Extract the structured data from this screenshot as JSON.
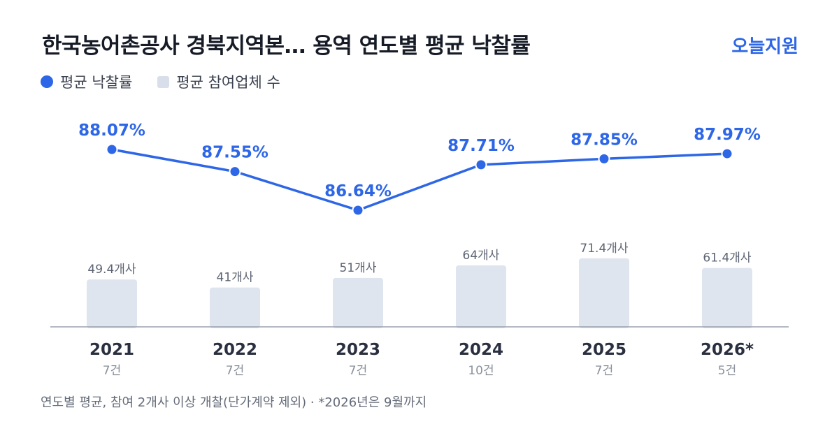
{
  "title": "한국농어촌공사 경북지역본… 용역 연도별 평균 낙찰률",
  "brand": "오늘지원",
  "legend": {
    "rate_label": "평균 낙찰률",
    "count_label": "평균 참여업체 수"
  },
  "footnote": "연도별 평균, 참여 2개사 이상 개찰(단가계약 제외) · *2026년은 9월까지",
  "colors": {
    "line": "#2d66e6",
    "bar": "#dfe5ee",
    "axis": "#9aa1ad"
  },
  "chart_data": {
    "type": "line+bar",
    "categories": [
      "2021",
      "2022",
      "2023",
      "2024",
      "2025",
      "2026*"
    ],
    "sublabels": [
      "7건",
      "7건",
      "7건",
      "10건",
      "7건",
      "5건"
    ],
    "series": [
      {
        "name": "평균 낙찰률",
        "type": "line",
        "values": [
          88.07,
          87.55,
          86.64,
          87.71,
          87.85,
          87.97
        ],
        "labels": [
          "88.07%",
          "87.55%",
          "86.64%",
          "87.71%",
          "87.85%",
          "87.97%"
        ]
      },
      {
        "name": "평균 참여업체 수",
        "type": "bar",
        "values": [
          49.4,
          41,
          51,
          64,
          71.4,
          61.4
        ],
        "labels": [
          "49.4개사",
          "41개사",
          "51개사",
          "64개사",
          "71.4개사",
          "61.4개사"
        ]
      }
    ],
    "grid": false,
    "legend_position": "top-left"
  }
}
